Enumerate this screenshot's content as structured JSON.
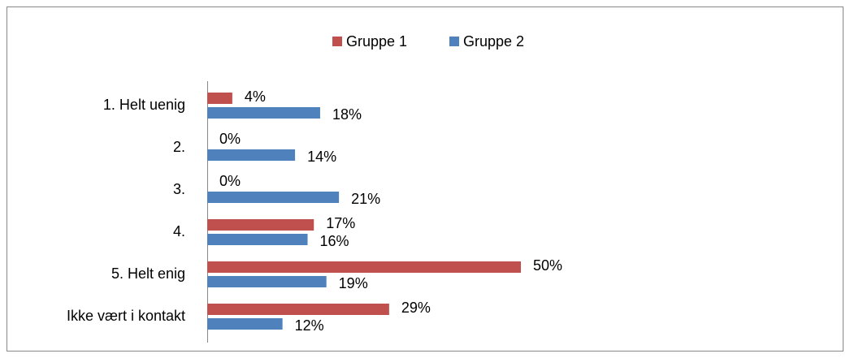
{
  "chart_data": {
    "type": "bar",
    "orientation": "horizontal",
    "categories": [
      "1. Helt uenig",
      "2.",
      "3.",
      "4.",
      "5. Helt enig",
      "Ikke vært i kontakt"
    ],
    "series": [
      {
        "name": "Gruppe 1",
        "color": "#c0504d",
        "values": [
          4,
          0,
          0,
          17,
          50,
          29
        ],
        "value_labels": [
          "4%",
          "0%",
          "0%",
          "17%",
          "50%",
          "29%"
        ]
      },
      {
        "name": "Gruppe 2",
        "color": "#4f81bd",
        "values": [
          18,
          14,
          21,
          16,
          19,
          12
        ],
        "value_labels": [
          "18%",
          "14%",
          "21%",
          "16%",
          "19%",
          "12%"
        ]
      }
    ],
    "legend": "top"
  }
}
